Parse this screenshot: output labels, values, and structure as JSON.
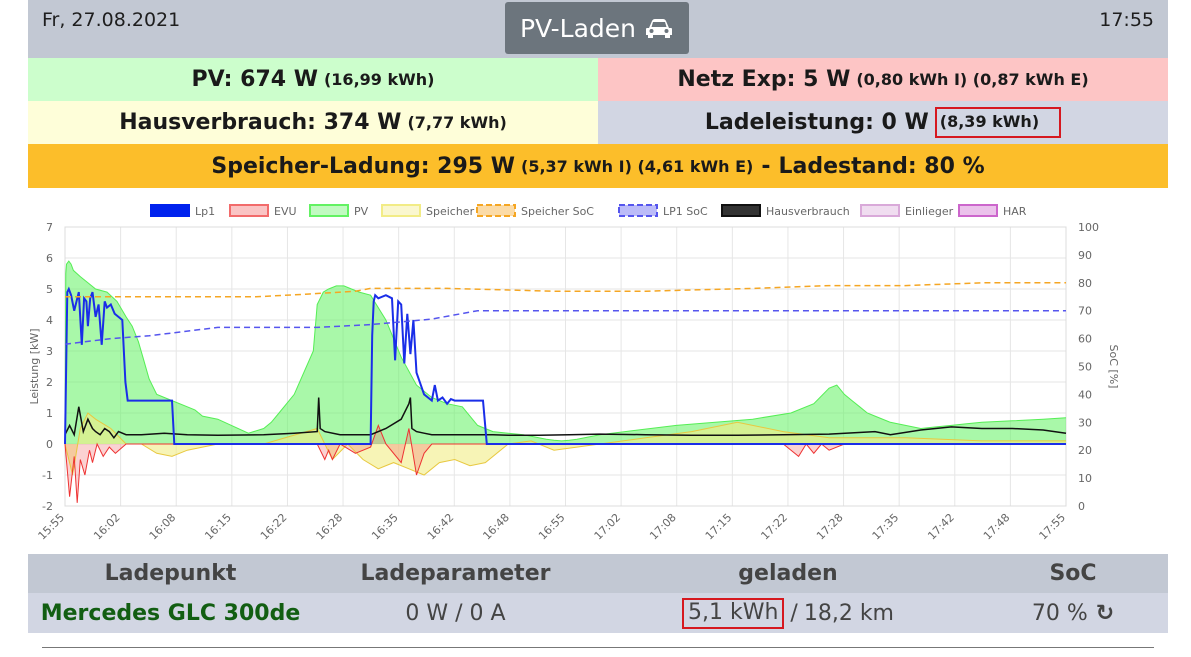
{
  "header": {
    "date": "Fr, 27.08.2021",
    "title": "PV-Laden",
    "time": "17:55"
  },
  "summary": {
    "pv": {
      "main": "PV: 674 W",
      "detail": "(16,99 kWh)"
    },
    "netz": {
      "main": "Netz Exp: 5 W",
      "detail": "(0,80 kWh I) (0,87 kWh E)"
    },
    "hausverbrauch": {
      "main": "Hausverbrauch: 374 W",
      "detail": "(7,77 kWh)"
    },
    "ladeleistung": {
      "main": "Ladeleistung: 0 W",
      "detail": "(8,39 kWh)"
    },
    "speicher": {
      "main": "Speicher-Ladung: 295 W",
      "detail": "(5,37 kWh I) (4,61 kWh E)",
      "sep": "-",
      "ladestand": "Ladestand: 80 %"
    }
  },
  "colors": {
    "pv_bg": "#ccfecc",
    "netz_bg": "#fdc5c5",
    "haus_bg": "#fefed9",
    "lade_bg": "#d2d6e3",
    "speicher_bg": "#fcbe2a",
    "header_bg": "#c2c8d3",
    "title_bg": "#6c757d",
    "vehicle": "#125e12",
    "highlight": "#d6181f"
  },
  "chart_data": {
    "type": "line",
    "legend": [
      "Lp1",
      "EVU",
      "PV",
      "Speicher",
      "Speicher SoC",
      "LP1 SoC",
      "Hausverbrauch",
      "Einlieger",
      "HAR"
    ],
    "legend_colors": [
      "#0022ee",
      "#f26b6b",
      "#63f263",
      "#f2ec86",
      "#f5a623",
      "#5555ee",
      "#111111",
      "#d9a9d9",
      "#cc66cc"
    ],
    "legend_placement": "top",
    "xlabels": [
      "15:55",
      "16:02",
      "16:08",
      "16:15",
      "16:22",
      "16:28",
      "16:35",
      "16:42",
      "16:48",
      "16:55",
      "17:02",
      "17:08",
      "17:15",
      "17:22",
      "17:28",
      "17:35",
      "17:42",
      "17:48",
      "17:55"
    ],
    "y_left_label": "Leistung [kW]",
    "y_left_ticks": [
      "7",
      "6",
      "5",
      "4",
      "3",
      "2",
      "1",
      "0",
      "-1",
      "-2"
    ],
    "y_left_range": [
      -2,
      7
    ],
    "y_right_label": "SoC [%]",
    "y_right_ticks": [
      "100",
      "90",
      "80",
      "70",
      "60",
      "50",
      "40",
      "30",
      "20",
      "10",
      "0"
    ],
    "y_right_range": [
      0,
      100
    ],
    "grid": true,
    "series": [
      {
        "name": "PV",
        "t": [
          0,
          1,
          2,
          5,
          8,
          11,
          20,
          30,
          40,
          55,
          68,
          80,
          88,
          96,
          102,
          110,
          120,
          140,
          160,
          170,
          180,
          200,
          240,
          260,
          270,
          280,
          300,
          325,
          330,
          338,
          345,
          355,
          365,
          375,
          385,
          400,
          420,
          440,
          460,
          480,
          500,
          520,
          540,
          560,
          580,
          600,
          610,
          620,
          630,
          640,
          650,
          660,
          670,
          700,
          800,
          900,
          950,
          980,
          1000,
          1010,
          1020,
          1030,
          1040,
          1050,
          1060,
          1080,
          1100,
          1120,
          1140,
          1160,
          1180,
          1200,
          1240,
          1280,
          1310
        ],
        "values": [
          0.3,
          5.5,
          5.8,
          5.9,
          5.8,
          5.6,
          5.4,
          5.2,
          5.0,
          4.9,
          4.6,
          4.1,
          3.8,
          3.3,
          2.8,
          2.1,
          1.6,
          1.4,
          1.2,
          1.1,
          0.9,
          0.8,
          0.35,
          0.5,
          0.7,
          1.0,
          1.6,
          3.0,
          4.5,
          4.9,
          5.0,
          5.1,
          5.1,
          5.0,
          4.9,
          4.8,
          4.0,
          2.8,
          1.9,
          1.5,
          1.3,
          1.2,
          0.6,
          0.4,
          0.35,
          0.3,
          0.25,
          0.2,
          0.15,
          0.12,
          0.1,
          0.12,
          0.15,
          0.3,
          0.6,
          0.8,
          1.0,
          1.3,
          1.8,
          1.9,
          1.6,
          1.4,
          1.2,
          1.0,
          0.9,
          0.7,
          0.6,
          0.5,
          0.55,
          0.6,
          0.65,
          0.7,
          0.75,
          0.8,
          0.85
        ]
      },
      {
        "name": "Lp1",
        "t": [
          0,
          3,
          5,
          8,
          12,
          18,
          22,
          25,
          28,
          30,
          33,
          36,
          40,
          44,
          48,
          52,
          55,
          60,
          65,
          70,
          75,
          79,
          82,
          140,
          143,
          400,
          402,
          404,
          406,
          410,
          420,
          428,
          432,
          436,
          440,
          444,
          448,
          452,
          456,
          460,
          470,
          480,
          484,
          488,
          494,
          500,
          505,
          510,
          520,
          530,
          540,
          547,
          552,
          560,
          620,
          700,
          900,
          1100,
          1310
        ],
        "values": [
          0,
          4.9,
          5.0,
          4.8,
          4.3,
          4.9,
          3.2,
          4.7,
          4.6,
          3.8,
          4.7,
          4.9,
          4.1,
          4.5,
          3.2,
          4.6,
          4.4,
          4.5,
          4.2,
          4.1,
          4.0,
          2.0,
          1.4,
          1.4,
          0.0,
          0.0,
          3.5,
          4.6,
          4.8,
          4.7,
          4.8,
          4.7,
          2.7,
          4.6,
          4.5,
          2.6,
          4.2,
          2.9,
          4.0,
          2.3,
          1.6,
          1.4,
          1.9,
          1.4,
          1.5,
          1.3,
          1.45,
          1.4,
          1.4,
          1.4,
          1.4,
          1.4,
          0.0,
          0.0,
          0.0,
          0.0,
          0.0,
          0.0,
          0.0
        ]
      },
      {
        "name": "Hausverbrauch",
        "t": [
          0,
          6,
          12,
          18,
          24,
          30,
          36,
          40,
          46,
          52,
          58,
          64,
          70,
          80,
          100,
          130,
          160,
          200,
          260,
          300,
          330,
          332,
          334,
          340,
          360,
          400,
          420,
          440,
          450,
          452,
          454,
          460,
          470,
          480,
          500,
          520,
          540,
          560,
          580,
          620,
          660,
          700,
          760,
          820,
          880,
          940,
          1000,
          1060,
          1080,
          1120,
          1160,
          1200,
          1240,
          1280,
          1310
        ],
        "values": [
          0.3,
          0.6,
          0.3,
          1.2,
          0.4,
          0.8,
          0.5,
          0.4,
          0.3,
          0.5,
          0.4,
          0.2,
          0.4,
          0.3,
          0.3,
          0.35,
          0.3,
          0.28,
          0.3,
          0.35,
          0.4,
          1.5,
          0.5,
          0.4,
          0.3,
          0.3,
          0.5,
          0.8,
          1.3,
          1.5,
          0.5,
          0.4,
          0.35,
          0.3,
          0.3,
          0.3,
          0.3,
          0.3,
          0.28,
          0.28,
          0.3,
          0.32,
          0.3,
          0.28,
          0.28,
          0.3,
          0.32,
          0.4,
          0.3,
          0.45,
          0.55,
          0.5,
          0.5,
          0.45,
          0.35
        ]
      },
      {
        "name": "EVU",
        "t": [
          0,
          6,
          12,
          16,
          20,
          26,
          32,
          36,
          42,
          50,
          58,
          66,
          80,
          100,
          130,
          150,
          160,
          200,
          260,
          330,
          340,
          345,
          350,
          360,
          380,
          400,
          410,
          420,
          440,
          450,
          460,
          470,
          480,
          500,
          520,
          560,
          620,
          760,
          880,
          940,
          960,
          970,
          980,
          990,
          1000,
          1020,
          1100,
          1200,
          1310
        ],
        "values": [
          0.0,
          -1.7,
          -0.4,
          -1.9,
          -0.5,
          -1.0,
          -0.2,
          -0.6,
          0.0,
          -0.4,
          -0.1,
          -0.3,
          0.0,
          0.0,
          0.0,
          0.0,
          0.0,
          0.0,
          0.0,
          0.0,
          -0.5,
          -0.2,
          -0.5,
          0.0,
          -0.3,
          -0.1,
          0.6,
          0.0,
          -0.6,
          0.5,
          -1.0,
          -0.3,
          0.0,
          0.0,
          0.0,
          0.0,
          0.0,
          0.0,
          0.0,
          0.0,
          -0.4,
          0.0,
          -0.3,
          0.0,
          -0.2,
          0.0,
          0.0,
          0.0,
          0.0
        ]
      },
      {
        "name": "Speicher",
        "t": [
          0,
          10,
          20,
          30,
          40,
          60,
          80,
          100,
          120,
          140,
          160,
          200,
          260,
          330,
          350,
          370,
          390,
          410,
          430,
          450,
          470,
          490,
          510,
          530,
          550,
          580,
          610,
          640,
          700,
          760,
          820,
          880,
          940,
          1000,
          1100,
          1200,
          1310
        ],
        "values": [
          0.0,
          -1.0,
          0.5,
          1.0,
          0.8,
          0.5,
          0.0,
          0.0,
          -0.3,
          -0.4,
          -0.2,
          0.0,
          0.0,
          0.5,
          -0.5,
          0.0,
          -0.5,
          -0.8,
          -0.6,
          -0.8,
          -1.0,
          -0.6,
          -0.5,
          -0.7,
          -0.6,
          0.0,
          0.1,
          -0.2,
          0.0,
          0.2,
          0.4,
          0.7,
          0.4,
          0.2,
          0.2,
          0.1,
          0.1
        ]
      },
      {
        "name": "Speicher SoC",
        "t": [
          0,
          40,
          120,
          180,
          250,
          320,
          380,
          400,
          500,
          640,
          760,
          900,
          1000,
          1100,
          1200,
          1310
        ],
        "values": [
          75,
          75,
          75,
          75,
          75,
          76,
          77,
          78,
          78,
          77,
          77,
          78,
          79,
          79,
          80,
          80
        ]
      },
      {
        "name": "LP1 SoC",
        "t": [
          0,
          30,
          60,
          110,
          200,
          330,
          400,
          480,
          540,
          700,
          900,
          1100,
          1310
        ],
        "values": [
          58,
          59,
          60,
          61,
          64,
          64,
          65,
          67,
          70,
          70,
          70,
          70,
          70
        ]
      }
    ]
  },
  "table": {
    "headers": [
      "Ladepunkt",
      "Ladeparameter",
      "geladen",
      "SoC"
    ],
    "row": {
      "ladepunkt": "Mercedes GLC 300de",
      "ladeparameter": "0 W / 0 A",
      "geladen_energy": "5,1 kWh",
      "geladen_sep": "/",
      "geladen_km": "18,2 km",
      "soc": "70 %",
      "refresh_icon": "refresh-icon"
    }
  }
}
